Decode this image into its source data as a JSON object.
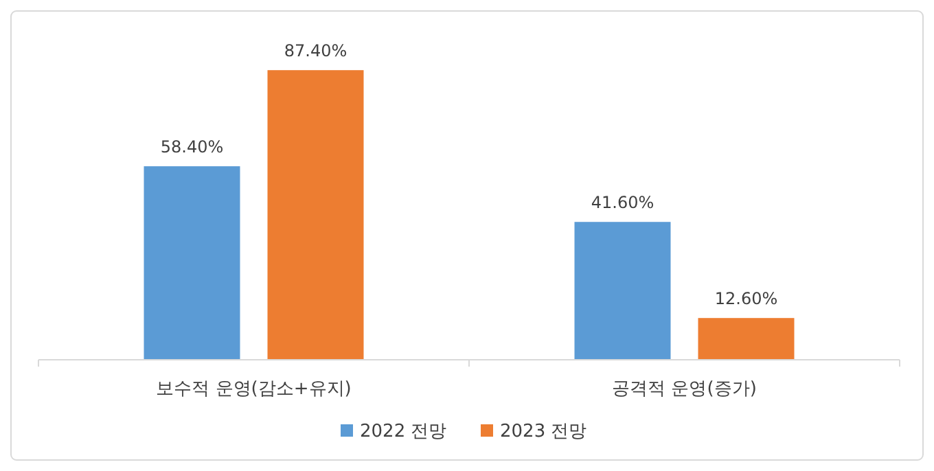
{
  "chart_data": {
    "type": "bar",
    "categories": [
      "보수적 운영(감소+유지)",
      "공격적 운영(증가)"
    ],
    "series": [
      {
        "name": "2022 전망",
        "color": "#5b9bd5",
        "values": [
          58.4,
          41.6
        ],
        "value_labels": [
          "58.40%",
          "41.60%"
        ]
      },
      {
        "name": "2023 전망",
        "color": "#ed7d31",
        "values": [
          87.4,
          12.6
        ],
        "value_labels": [
          "87.40%",
          "12.60%"
        ]
      }
    ],
    "legend": "bottom",
    "tick_labels": "x"
  }
}
